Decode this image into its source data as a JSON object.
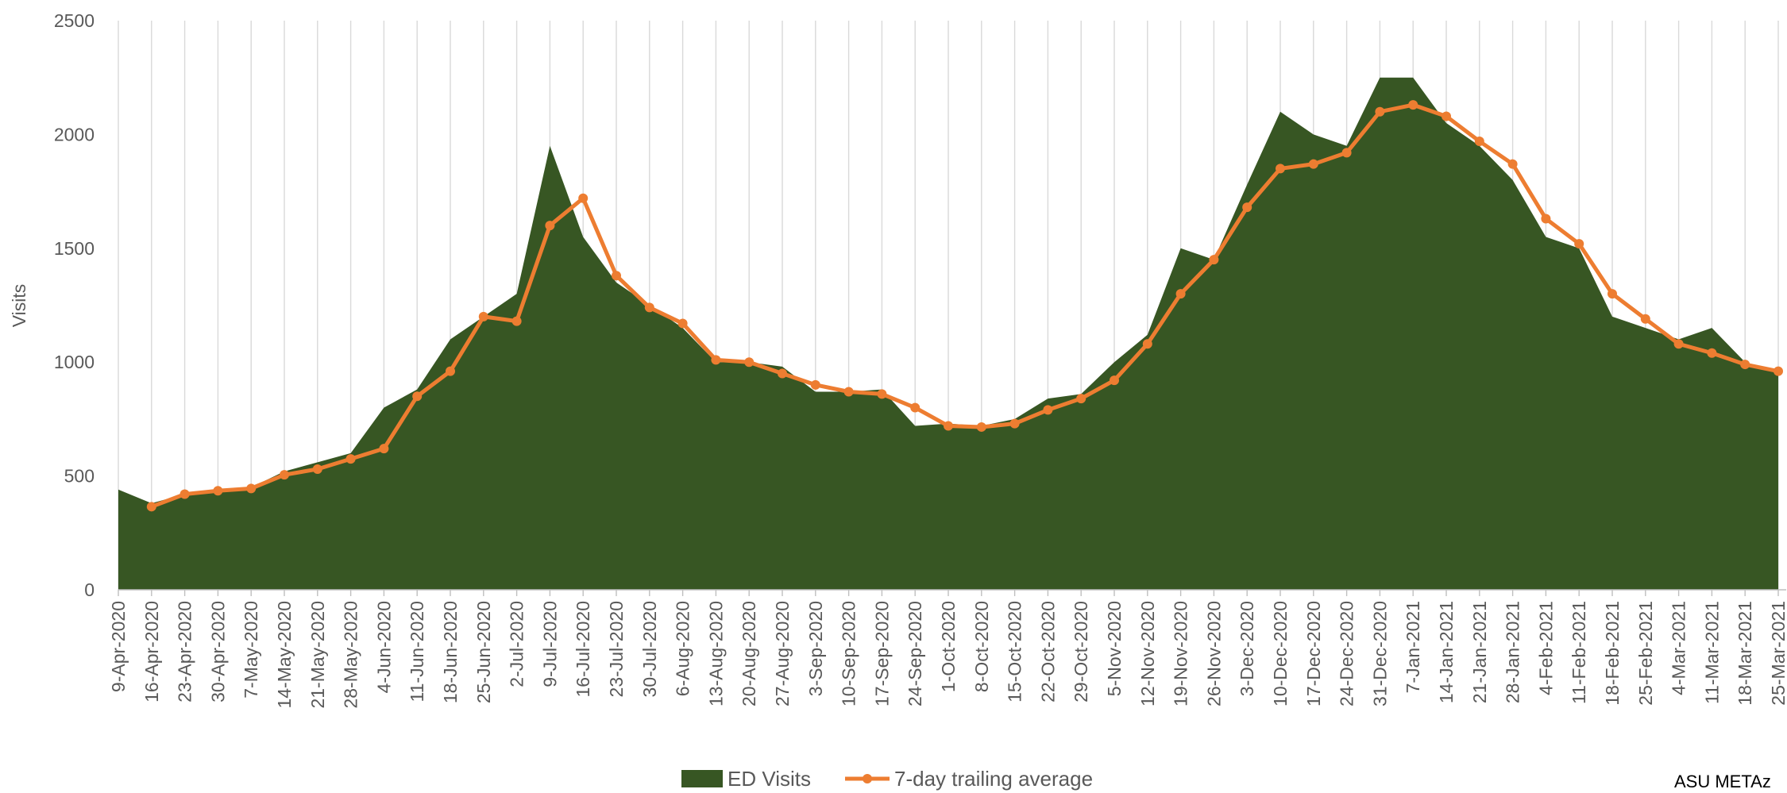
{
  "chart_data": {
    "type": "area_line",
    "y_label": "Visits",
    "source": "ASU METAz",
    "categories": [
      "9-Apr-2020",
      "16-Apr-2020",
      "23-Apr-2020",
      "30-Apr-2020",
      "7-May-2020",
      "14-May-2020",
      "21-May-2020",
      "28-May-2020",
      "4-Jun-2020",
      "11-Jun-2020",
      "18-Jun-2020",
      "25-Jun-2020",
      "2-Jul-2020",
      "9-Jul-2020",
      "16-Jul-2020",
      "23-Jul-2020",
      "30-Jul-2020",
      "6-Aug-2020",
      "13-Aug-2020",
      "20-Aug-2020",
      "27-Aug-2020",
      "3-Sep-2020",
      "10-Sep-2020",
      "17-Sep-2020",
      "24-Sep-2020",
      "1-Oct-2020",
      "8-Oct-2020",
      "15-Oct-2020",
      "22-Oct-2020",
      "29-Oct-2020",
      "5-Nov-2020",
      "12-Nov-2020",
      "19-Nov-2020",
      "26-Nov-2020",
      "3-Dec-2020",
      "10-Dec-2020",
      "17-Dec-2020",
      "24-Dec-2020",
      "31-Dec-2020",
      "7-Jan-2021",
      "14-Jan-2021",
      "21-Jan-2021",
      "28-Jan-2021",
      "4-Feb-2021",
      "11-Feb-2021",
      "18-Feb-2021",
      "25-Feb-2021",
      "4-Mar-2021",
      "11-Mar-2021",
      "18-Mar-2021",
      "25-Mar-2021"
    ],
    "series": [
      {
        "name": "ED Visits",
        "kind": "area",
        "color": "#375623",
        "values": [
          440,
          380,
          420,
          440,
          450,
          520,
          560,
          600,
          800,
          880,
          1100,
          1200,
          1300,
          1950,
          1550,
          1350,
          1250,
          1150,
          1000,
          1000,
          980,
          870,
          870,
          880,
          720,
          730,
          720,
          750,
          840,
          860,
          1000,
          1120,
          1500,
          1450,
          1780,
          2100,
          2000,
          1950,
          2250,
          2250,
          2050,
          1950,
          1800,
          1550,
          1500,
          1200,
          1150,
          1100,
          1150,
          1000,
          950
        ]
      },
      {
        "name": "7-day trailing average",
        "kind": "line",
        "color": "#ed7d31",
        "values": [
          null,
          365,
          420,
          435,
          445,
          505,
          530,
          575,
          620,
          850,
          960,
          1200,
          1180,
          1600,
          1720,
          1380,
          1240,
          1170,
          1010,
          1000,
          950,
          900,
          870,
          860,
          800,
          720,
          715,
          730,
          790,
          840,
          920,
          1080,
          1300,
          1450,
          1680,
          1850,
          1870,
          1920,
          2100,
          2130,
          2080,
          1970,
          1870,
          1630,
          1520,
          1300,
          1190,
          1080,
          1040,
          990,
          960
        ]
      }
    ],
    "ylim": [
      0,
      2500
    ],
    "yticks": [
      0,
      500,
      1000,
      1500,
      2000,
      2500
    ],
    "grid": true,
    "legend": "bottom"
  }
}
